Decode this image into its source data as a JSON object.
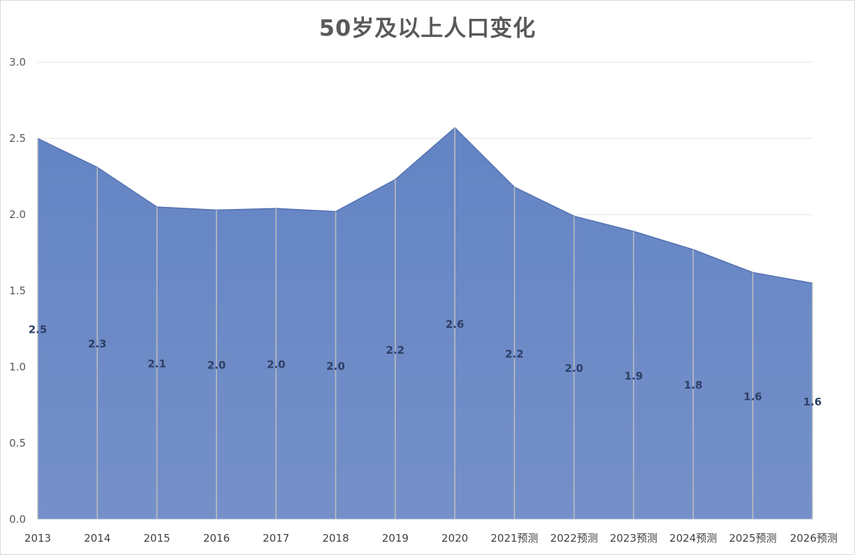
{
  "chart_data": {
    "type": "area",
    "title": "50岁及以上人口变化",
    "xlabel": "",
    "ylabel": "",
    "ylim": [
      0,
      3.0
    ],
    "yticks": [
      "0.0",
      "0.5",
      "1.0",
      "1.5",
      "2.0",
      "2.5",
      "3.0"
    ],
    "categories": [
      "2013",
      "2014",
      "2015",
      "2016",
      "2017",
      "2018",
      "2019",
      "2020",
      "2021预测",
      "2022预测",
      "2023预测",
      "2024预测",
      "2025预测",
      "2026预测"
    ],
    "values": [
      2.5,
      2.31,
      2.05,
      2.03,
      2.04,
      2.02,
      2.23,
      2.57,
      2.18,
      1.99,
      1.89,
      1.77,
      1.62,
      1.55
    ],
    "data_labels": [
      "2.5",
      "2.3",
      "2.1",
      "2.0",
      "2.0",
      "2.0",
      "2.2",
      "2.6",
      "2.2",
      "2.0",
      "1.9",
      "1.8",
      "1.6",
      "1.6"
    ],
    "grid": true,
    "legend": "none",
    "colors": {
      "area_top": "#6384c4",
      "area_bottom": "#7590c9",
      "area_stroke": "#5470b0",
      "gridline": "#e6e6e6",
      "drop_line": "#bfbfbf"
    }
  }
}
